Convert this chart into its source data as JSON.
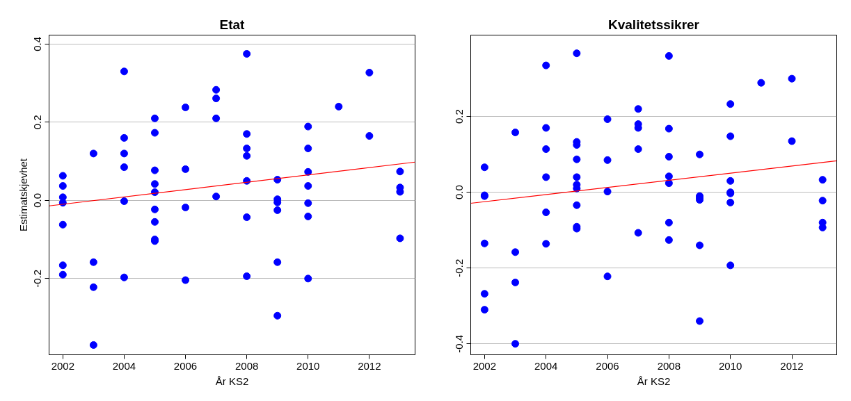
{
  "chart_data": [
    {
      "type": "scatter",
      "title": "Etat",
      "xlabel": "År KS2",
      "ylabel": "Estimatskjevhet",
      "xlim": [
        2001.55,
        2013.49
      ],
      "ylim": [
        -0.395,
        0.423
      ],
      "xticks": [
        2002,
        2004,
        2006,
        2008,
        2010,
        2012
      ],
      "yticks": [
        -0.2,
        {
          "value": 0,
          "label": "0.0"
        },
        0.2,
        0.4
      ],
      "grid": "y",
      "series": [
        {
          "marker": "circle",
          "color": "#0000ff",
          "x": [
            2002,
            2002,
            2002,
            2002,
            2002,
            2002,
            2002,
            2003,
            2003,
            2003,
            2003,
            2004,
            2004,
            2004,
            2004,
            2004,
            2004,
            2005,
            2005,
            2005,
            2005,
            2005,
            2005,
            2005,
            2005,
            2005,
            2006,
            2006,
            2006,
            2006,
            2007,
            2007,
            2007,
            2007,
            2008,
            2008,
            2008,
            2008,
            2008,
            2008,
            2008,
            2009,
            2009,
            2009,
            2009,
            2009,
            2009,
            2010,
            2010,
            2010,
            2010,
            2010,
            2010,
            2010,
            2011,
            2012,
            2012,
            2013,
            2013,
            2013,
            2013
          ],
          "values": [
            0.063,
            0.037,
            0.008,
            -0.006,
            -0.062,
            -0.166,
            -0.19,
            0.12,
            -0.158,
            -0.222,
            -0.37,
            0.33,
            0.16,
            0.12,
            0.085,
            -0.002,
            -0.197,
            0.21,
            0.173,
            0.077,
            0.042,
            0.021,
            -0.023,
            -0.055,
            -0.1,
            -0.104,
            0.238,
            0.08,
            -0.018,
            -0.204,
            0.283,
            0.261,
            0.21,
            0.01,
            0.375,
            0.17,
            0.133,
            0.114,
            0.05,
            -0.043,
            -0.194,
            0.053,
            0.003,
            -0.005,
            -0.025,
            -0.158,
            -0.295,
            0.189,
            0.133,
            0.073,
            0.037,
            -0.007,
            -0.041,
            -0.2,
            0.24,
            0.327,
            0.165,
            0.074,
            0.033,
            0.022,
            -0.097
          ]
        },
        {
          "type": "line",
          "marker": "none",
          "color": "#ff0000",
          "x": [
            2001.55,
            2013.49
          ],
          "values": [
            -0.014,
            0.098
          ]
        }
      ]
    },
    {
      "type": "scatter",
      "title": "Kvalitetssikrer",
      "xlabel": "År KS2",
      "xlim": [
        2001.55,
        2013.46
      ],
      "ylim": [
        -0.429,
        0.415
      ],
      "xticks": [
        2002,
        2004,
        2006,
        2008,
        2010,
        2012
      ],
      "yticks": [
        -0.4,
        -0.2,
        {
          "value": 0,
          "label": "0.0"
        },
        0.2
      ],
      "grid": "y",
      "series": [
        {
          "marker": "circle",
          "color": "#0000ff",
          "x": [
            2002,
            2002,
            2002,
            2002,
            2002,
            2002,
            2003,
            2003,
            2003,
            2003,
            2004,
            2004,
            2004,
            2004,
            2004,
            2004,
            2005,
            2005,
            2005,
            2005,
            2005,
            2005,
            2005,
            2005,
            2005,
            2005,
            2006,
            2006,
            2006,
            2006,
            2007,
            2007,
            2007,
            2007,
            2007,
            2008,
            2008,
            2008,
            2008,
            2008,
            2008,
            2008,
            2009,
            2009,
            2009,
            2009,
            2009,
            2009,
            2010,
            2010,
            2010,
            2010,
            2010,
            2010,
            2010,
            2011,
            2012,
            2012,
            2013,
            2013,
            2013,
            2013
          ],
          "values": [
            0.066,
            -0.008,
            -0.01,
            -0.135,
            -0.268,
            -0.31,
            0.158,
            -0.158,
            -0.238,
            -0.4,
            0.335,
            0.17,
            0.114,
            0.04,
            -0.053,
            -0.136,
            0.367,
            0.133,
            0.125,
            0.087,
            0.04,
            0.02,
            0.01,
            -0.034,
            -0.091,
            -0.096,
            0.193,
            0.085,
            0.002,
            -0.222,
            0.22,
            0.18,
            0.17,
            0.114,
            -0.107,
            0.36,
            0.168,
            0.094,
            0.042,
            0.024,
            -0.08,
            -0.126,
            0.1,
            -0.01,
            -0.015,
            -0.02,
            -0.14,
            -0.34,
            0.233,
            0.148,
            0.03,
            0.0,
            -0.003,
            -0.027,
            -0.193,
            0.289,
            0.3,
            0.135,
            0.033,
            -0.022,
            -0.08,
            -0.093
          ]
        },
        {
          "type": "line",
          "marker": "none",
          "color": "#ff0000",
          "x": [
            2001.55,
            2013.46
          ],
          "values": [
            -0.029,
            0.083
          ]
        }
      ]
    }
  ]
}
